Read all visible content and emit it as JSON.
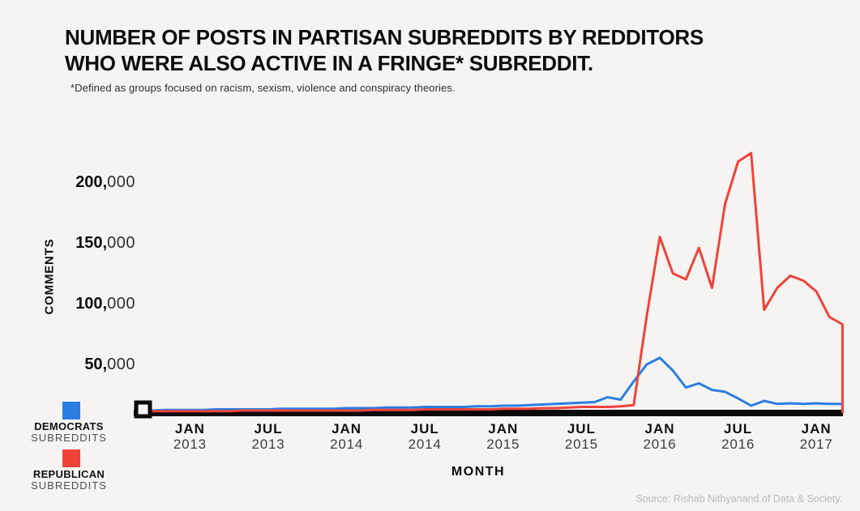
{
  "header": {
    "title_line1": "NUMBER OF POSTS IN PARTISAN SUBREDDITS BY REDDITORS",
    "title_line2": "WHO WERE ALSO ACTIVE IN A FRINGE* SUBREDDIT.",
    "subtitle": "*Defined as groups focused on racism, sexism, violence and conspiracy theories."
  },
  "legend": {
    "items": [
      {
        "line1": "DEMOCRATS",
        "line2": "SUBREDDITS",
        "color": "#2b7de1"
      },
      {
        "line1": "REPUBLICAN",
        "line2": "SUBREDDITS",
        "color": "#f04239"
      }
    ]
  },
  "footer": {
    "source": "Source: Rishab Nithyanand of Data & Society."
  },
  "chart_data": {
    "type": "line",
    "title": "Number of posts in partisan subreddits by redditors who were also active in a fringe subreddit",
    "xlabel": "MONTH",
    "ylabel": "COMMENTS",
    "ylim": [
      0,
      230000
    ],
    "grid": false,
    "legend_position": "bottom-left",
    "axis_color": "#0a0a0a",
    "background_color": "#f5f4f2",
    "yticks": [
      {
        "label_bold": "200,",
        "label_light": "000",
        "value": 200000
      },
      {
        "label_bold": "150,",
        "label_light": "000",
        "value": 150000
      },
      {
        "label_bold": "100,",
        "label_light": "000",
        "value": 100000
      },
      {
        "label_bold": "50,",
        "label_light": "000",
        "value": 50000
      }
    ],
    "xticks": [
      {
        "month": "JAN",
        "year": "2013",
        "index": 4
      },
      {
        "month": "JUL",
        "year": "2013",
        "index": 10
      },
      {
        "month": "JAN",
        "year": "2014",
        "index": 16
      },
      {
        "month": "JUL",
        "year": "2014",
        "index": 22
      },
      {
        "month": "JAN",
        "year": "2015",
        "index": 28
      },
      {
        "month": "JUL",
        "year": "2015",
        "index": 34
      },
      {
        "month": "JAN",
        "year": "2016",
        "index": 40
      },
      {
        "month": "JUL",
        "year": "2016",
        "index": 46
      },
      {
        "month": "JAN",
        "year": "2017",
        "index": 52
      }
    ],
    "categories": [
      "Sep 2012",
      "Oct 2012",
      "Nov 2012",
      "Dec 2012",
      "Jan 2013",
      "Feb 2013",
      "Mar 2013",
      "Apr 2013",
      "May 2013",
      "Jun 2013",
      "Jul 2013",
      "Aug 2013",
      "Sep 2013",
      "Oct 2013",
      "Nov 2013",
      "Dec 2013",
      "Jan 2014",
      "Feb 2014",
      "Mar 2014",
      "Apr 2014",
      "May 2014",
      "Jun 2014",
      "Jul 2014",
      "Aug 2014",
      "Sep 2014",
      "Oct 2014",
      "Nov 2014",
      "Dec 2014",
      "Jan 2015",
      "Feb 2015",
      "Mar 2015",
      "Apr 2015",
      "May 2015",
      "Jun 2015",
      "Jul 2015",
      "Aug 2015",
      "Sep 2015",
      "Oct 2015",
      "Nov 2015",
      "Dec 2015",
      "Jan 2016",
      "Feb 2016",
      "Mar 2016",
      "Apr 2016",
      "May 2016",
      "Jun 2016",
      "Jul 2016",
      "Aug 2016",
      "Sep 2016",
      "Oct 2016",
      "Nov 2016",
      "Dec 2016",
      "Jan 2017",
      "Feb 2017",
      "Mar 2017"
    ],
    "series": [
      {
        "name": "DEMOCRATS SUBREDDITS",
        "color": "#2b7de1",
        "values": [
          12000,
          12000,
          12500,
          12500,
          12500,
          12500,
          13000,
          13000,
          13000,
          13000,
          13000,
          13500,
          13500,
          13500,
          13500,
          13500,
          14000,
          14000,
          14000,
          14500,
          14500,
          14500,
          15000,
          15000,
          15000,
          15000,
          15500,
          15500,
          16000,
          16000,
          16500,
          17000,
          17500,
          18000,
          18500,
          19000,
          23000,
          21000,
          36000,
          50000,
          55500,
          45000,
          31000,
          34500,
          29000,
          27500,
          22000,
          16000,
          20000,
          17500,
          18000,
          17500,
          18000,
          17500,
          17500
        ]
      },
      {
        "name": "REPUBLICAN SUBREDDITS",
        "color": "#f04239",
        "values": [
          11500,
          11500,
          11500,
          11500,
          11500,
          11500,
          11500,
          11500,
          12000,
          12000,
          12000,
          12000,
          12000,
          12000,
          12000,
          12000,
          12000,
          12000,
          12500,
          12500,
          12500,
          12500,
          13000,
          13000,
          13000,
          13000,
          13000,
          13000,
          13500,
          13500,
          13500,
          14000,
          14000,
          14500,
          15000,
          15000,
          15000,
          15500,
          16500,
          90000,
          155000,
          125000,
          120000,
          146000,
          113000,
          182000,
          217000,
          224000,
          95000,
          113000,
          123000,
          119000,
          110000,
          89000,
          83000
        ]
      }
    ]
  }
}
